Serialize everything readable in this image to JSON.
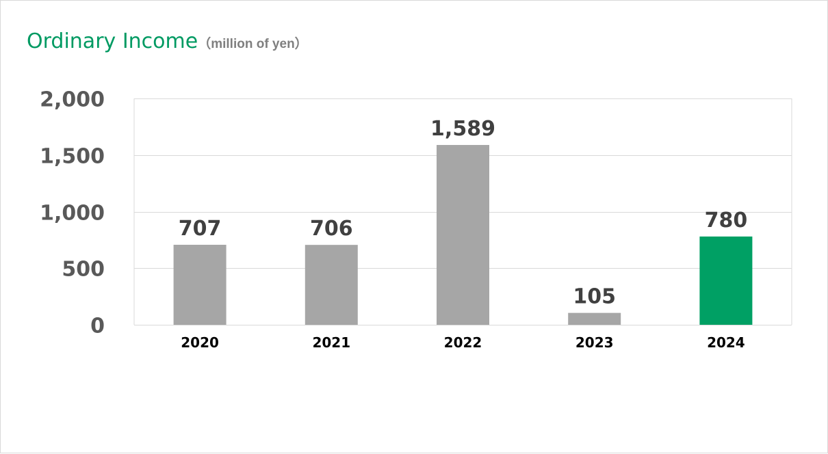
{
  "chart_data": {
    "type": "bar",
    "title": "Ordinary Income",
    "subtitle": "（million of yen）",
    "xlabel": "",
    "ylabel": "",
    "categories": [
      "2020",
      "2021",
      "2022",
      "2023",
      "2024"
    ],
    "values": [
      707,
      706,
      1589,
      105,
      780
    ],
    "value_labels": [
      "707",
      "706",
      "1,589",
      "105",
      "780"
    ],
    "ylim": [
      0,
      2000
    ],
    "yticks": [
      0,
      500,
      1000,
      1500,
      2000
    ],
    "ytick_labels": [
      "0",
      "500",
      "1,000",
      "1,500",
      "2,000"
    ],
    "grid": true,
    "legend": "none",
    "colors": {
      "bar": "#a6a6a6",
      "highlight": "#00a064",
      "highlight_category": "2024",
      "title": "#009a62",
      "gridline": "#d9d9d9"
    }
  }
}
